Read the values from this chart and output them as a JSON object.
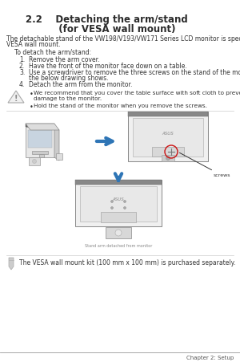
{
  "bg_color": "#ffffff",
  "title_line1": "2.2    Detaching the arm/stand",
  "title_line2": "          (for VESA wall mount)",
  "body_text1": "The detachable stand of the VW198/V193/VW171 Series LCD monitor is specially designed for",
  "body_text2": "VESA wall mount.",
  "indent_text": "To detach the arm/stand:",
  "list_items": [
    "Remove the arm cover.",
    "Have the front of the monitor face down on a table.",
    "Use a screwdriver to remove the three screws on the stand of the monitor as",
    "the below drawing shows.",
    "Detach the arm from the monitor."
  ],
  "list_numbers": [
    "1.",
    "2.",
    "3.",
    "",
    "4."
  ],
  "warning_bullet1": "We recommend that you cover the table surface with soft cloth to prevent",
  "warning_bullet1b": "damage to the monitor.",
  "warning_bullet2": "Hold the stand of the monitor when you remove the screws.",
  "note_text": "The VESA wall mount kit (100 mm x 100 mm) is purchased separately.",
  "footer_text": "Chapter 2: Setup",
  "arrow_color": "#2e75b6",
  "screws_label": "screws"
}
